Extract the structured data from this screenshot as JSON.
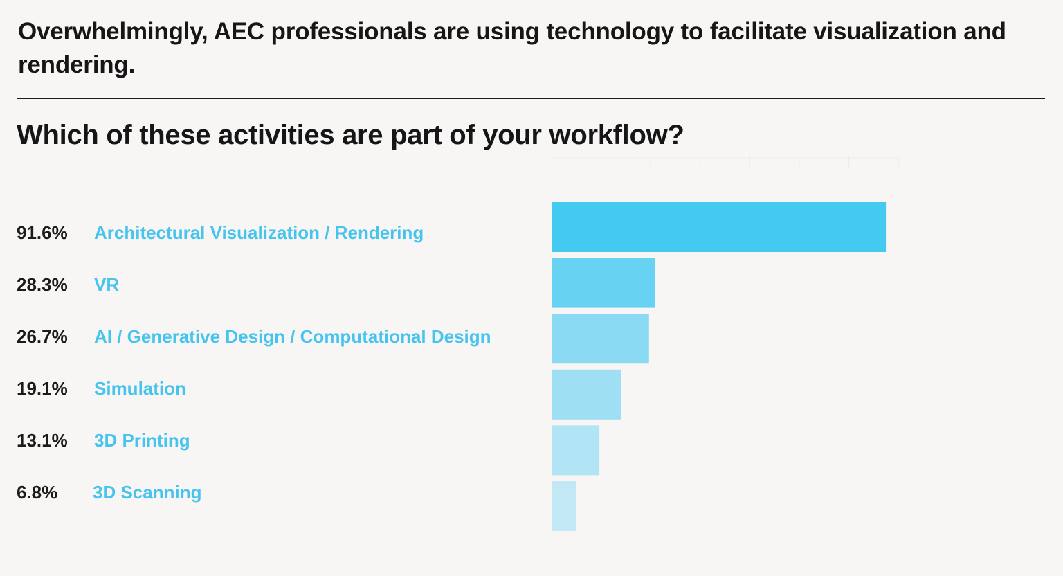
{
  "headline": "Overwhelmingly, AEC professionals are using technology to facilitate visualization and rendering.",
  "question": "Which of these activities are part of your workflow?",
  "chart_data": {
    "type": "bar",
    "orientation": "horizontal",
    "categories": [
      "Architectural Visualization / Rendering",
      "VR",
      "AI / Generative Design / Computational Design",
      "Simulation",
      "3D Printing",
      "3D Scanning"
    ],
    "values": [
      91.6,
      28.3,
      26.7,
      19.1,
      13.1,
      6.8
    ],
    "value_labels": [
      "91.6%",
      "28.3%",
      "26.7%",
      "19.1%",
      "13.1%",
      "6.8%"
    ],
    "unit": "%",
    "xlim": [
      0,
      95
    ],
    "grid": true,
    "bar_colors": [
      "#44c9f1",
      "#67d2f2",
      "#89daf2",
      "#9edff4",
      "#b1e4f4",
      "#c3e8f5"
    ]
  }
}
